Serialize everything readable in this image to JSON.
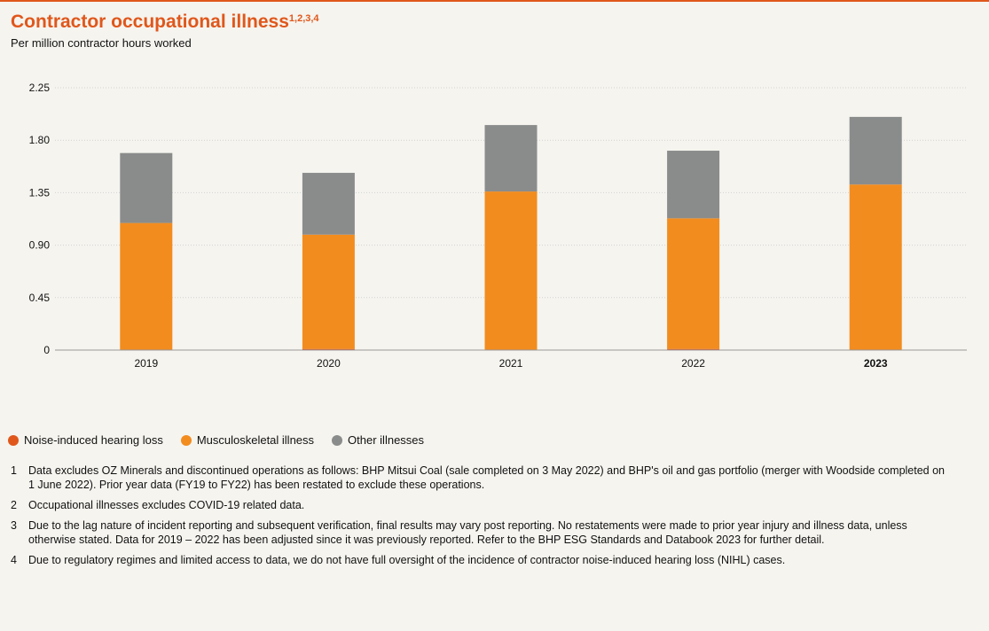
{
  "header": {
    "title": "Contractor occupational illness",
    "title_superscript": "1,2,3,4",
    "subtitle": "Per million contractor hours worked"
  },
  "colors": {
    "accent": "#e0571b",
    "noise": "#e0571b",
    "musculoskeletal": "#f28c1e",
    "other": "#8a8c8c"
  },
  "chart_data": {
    "type": "bar",
    "stacked": true,
    "categories": [
      "2019",
      "2020",
      "2021",
      "2022",
      "2023"
    ],
    "highlight_category": "2023",
    "series": [
      {
        "name": "Noise-induced hearing loss",
        "values": [
          0,
          0.01,
          0,
          0.01,
          0
        ],
        "color": "#e0571b"
      },
      {
        "name": "Musculoskeletal illness",
        "values": [
          1.09,
          0.98,
          1.36,
          1.12,
          1.42
        ],
        "color": "#f28c1e"
      },
      {
        "name": "Other illnesses",
        "values": [
          0.6,
          0.53,
          0.57,
          0.58,
          0.58
        ],
        "color": "#8a8c8c"
      }
    ],
    "ylim": [
      0,
      2.25
    ],
    "yticks": [
      "0",
      "0.45",
      "0.90",
      "1.35",
      "1.80",
      "2.25"
    ],
    "grid": true,
    "legend_position": "bottom-left"
  },
  "legend": [
    {
      "label": "Noise-induced hearing loss",
      "color": "#e0571b"
    },
    {
      "label": "Musculoskeletal illness",
      "color": "#f28c1e"
    },
    {
      "label": "Other illnesses",
      "color": "#8a8c8c"
    }
  ],
  "footnotes": [
    {
      "num": "1",
      "text": "Data excludes OZ Minerals and discontinued operations as follows: BHP Mitsui Coal (sale completed on 3 May 2022) and BHP's oil and gas portfolio (merger with Woodside completed on 1 June 2022). Prior year data (FY19 to FY22) has been restated to exclude these operations."
    },
    {
      "num": "2",
      "text": "Occupational illnesses excludes COVID-19 related data."
    },
    {
      "num": "3",
      "text": "Due to the lag nature of incident reporting and subsequent verification, final results may vary post reporting. No restatements were made to prior year injury and illness data, unless otherwise stated. Data for 2019 – 2022 has been adjusted since it was previously reported. Refer to the BHP ESG Standards and Databook 2023 for further detail."
    },
    {
      "num": "4",
      "text": "Due to regulatory regimes and limited access to data, we do not have full oversight of the incidence of contractor noise-induced hearing loss (NIHL) cases."
    }
  ]
}
